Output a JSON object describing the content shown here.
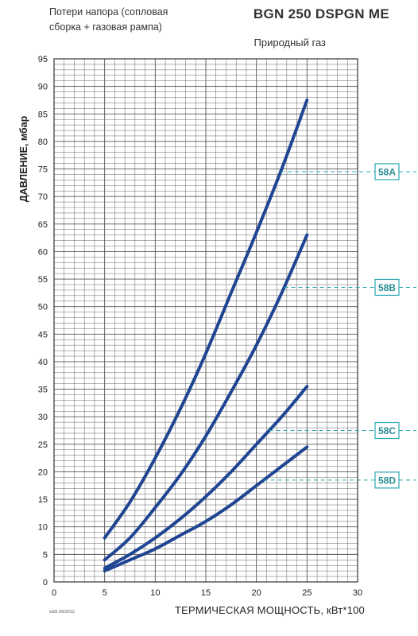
{
  "note": {
    "line1": "Потери напора (сопловая",
    "line2": "сборка + газовая рампа)"
  },
  "title": "BGN 250 DSPGN ME",
  "subtitle": "Природный газ",
  "edition": "ed2i.09/2012",
  "colors": {
    "curve": "#1f4592",
    "grid": "#555555",
    "accent": "#2aa8b1",
    "label_text": "#2a8c95"
  },
  "chart_data": {
    "type": "line",
    "xlabel": "ТЕРМИЧЕСКАЯ МОЩНОСТЬ, кВт*100",
    "ylabel": "ДАВЛЕНИЕ, мбар",
    "xlim": [
      0,
      30
    ],
    "ylim": [
      0,
      95
    ],
    "xticks": [
      0,
      5,
      10,
      15,
      20,
      25,
      30
    ],
    "yticks": [
      0,
      5,
      10,
      15,
      20,
      25,
      30,
      35,
      40,
      45,
      50,
      55,
      60,
      65,
      70,
      75,
      80,
      85,
      90,
      95
    ],
    "grid": true,
    "x": [
      5,
      7.5,
      10,
      12.5,
      15,
      17.5,
      20,
      22.5,
      25
    ],
    "series": [
      {
        "name": "58A",
        "values": [
          8.0,
          14.5,
          22.5,
          31.5,
          41.5,
          52.5,
          63.5,
          75.0,
          87.5
        ],
        "ref": 74.5
      },
      {
        "name": "58B",
        "values": [
          4.0,
          8.0,
          13.5,
          19.5,
          26.5,
          34.5,
          43.0,
          52.5,
          63.0
        ],
        "ref": 53.5
      },
      {
        "name": "58C",
        "values": [
          2.5,
          5.0,
          8.0,
          11.5,
          15.5,
          20.0,
          25.0,
          30.0,
          35.5
        ],
        "ref": 27.5
      },
      {
        "name": "58D",
        "values": [
          2.0,
          4.0,
          6.0,
          8.5,
          11.0,
          14.0,
          17.5,
          21.0,
          24.5
        ],
        "ref": 18.5
      }
    ]
  }
}
